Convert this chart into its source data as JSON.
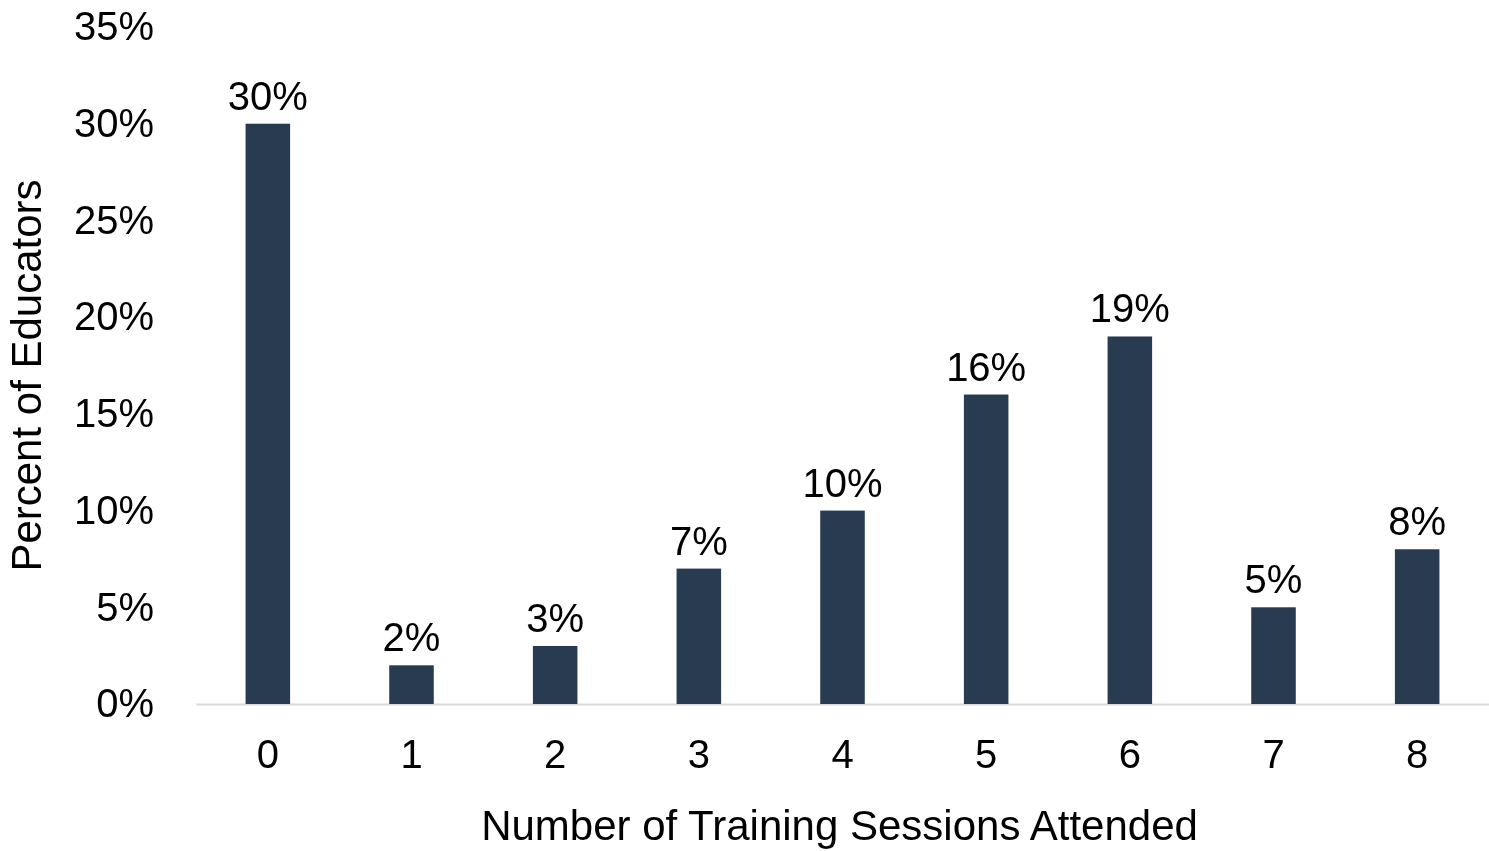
{
  "chart_data": {
    "type": "bar",
    "xlabel": "Number of Training Sessions Attended",
    "ylabel": "Percent of Educators",
    "categories": [
      "0",
      "1",
      "2",
      "3",
      "4",
      "5",
      "6",
      "7",
      "8"
    ],
    "values": [
      30,
      2,
      3,
      7,
      10,
      16,
      19,
      5,
      8
    ],
    "color": "#283b50",
    "ylim": [
      0,
      35
    ],
    "yticks": [
      {
        "value": 0,
        "label": "0%"
      },
      {
        "value": 5,
        "label": "5%"
      },
      {
        "value": 10,
        "label": "10%"
      },
      {
        "value": 15,
        "label": "15%"
      },
      {
        "value": 20,
        "label": "20%"
      },
      {
        "value": 25,
        "label": "25%"
      },
      {
        "value": 30,
        "label": "30%"
      },
      {
        "value": 35,
        "label": "35%"
      }
    ],
    "value_labels": [
      "30%",
      "2%",
      "3%",
      "7%",
      "10%",
      "16%",
      "19%",
      "5%",
      "8%"
    ]
  }
}
